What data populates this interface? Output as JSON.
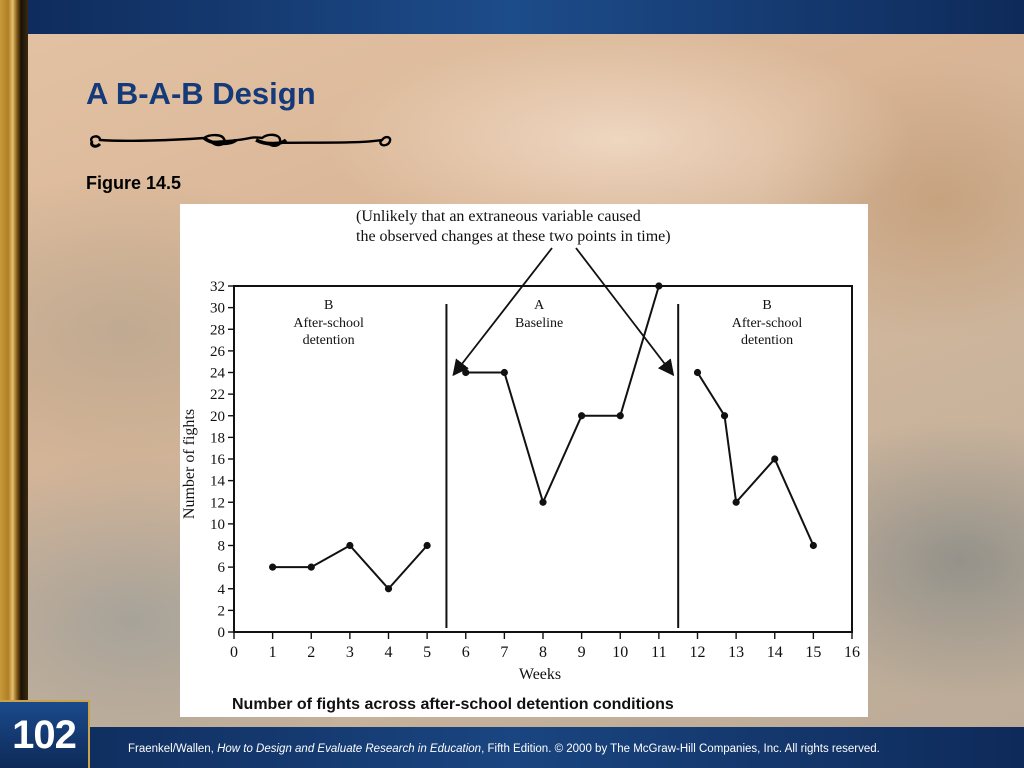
{
  "slide": {
    "title": "A B-A-B Design",
    "figure_label": "Figure 14.5",
    "page_number": "102",
    "footer": {
      "authors": "Fraenkel/Wallen, ",
      "book_title": "How to Design and Evaluate Research in Education",
      "rest": ", Fifth Edition. © 2000 by The McGraw-Hill Companies, Inc. All rights reserved."
    }
  },
  "colors": {
    "title": "#143a7a",
    "bar": "#0e2a5a",
    "accent_gold": "#c9a24a"
  },
  "icons": [
    "flourish-ornament"
  ],
  "chart_data": {
    "type": "line",
    "title": "Number of fights across after-school detention conditions",
    "xlabel": "Weeks",
    "ylabel": "Number of fights",
    "xlim": [
      0,
      16
    ],
    "ylim": [
      0,
      32
    ],
    "x_ticks": [
      0,
      1,
      2,
      3,
      4,
      5,
      6,
      7,
      8,
      9,
      10,
      11,
      12,
      13,
      14,
      15,
      16
    ],
    "y_ticks": [
      0,
      2,
      4,
      6,
      8,
      10,
      12,
      14,
      16,
      18,
      20,
      22,
      24,
      26,
      28,
      30,
      32
    ],
    "grid": false,
    "phase_dividers": [
      5.5,
      11.5
    ],
    "phases": [
      {
        "code": "B",
        "line1": "After-school",
        "line2": "detention",
        "center": 2.45
      },
      {
        "code": "A",
        "line1": "Baseline",
        "line2": "",
        "center": 7.9
      },
      {
        "code": "B",
        "line1": "After-school",
        "line2": "detention",
        "center": 13.8
      }
    ],
    "series": [
      {
        "phase": "B",
        "x": [
          1,
          2,
          3,
          4,
          5
        ],
        "y": [
          6,
          6,
          8,
          4,
          8
        ]
      },
      {
        "phase": "A",
        "x": [
          6,
          7,
          8,
          9,
          10,
          11
        ],
        "y": [
          24,
          24,
          12,
          20,
          20,
          32
        ]
      },
      {
        "phase": "B",
        "x": [
          12,
          12.7,
          13,
          14,
          15
        ],
        "y": [
          24,
          20,
          12,
          16,
          8
        ]
      }
    ],
    "annotation": {
      "line1": "(Unlikely that an extraneous variable caused",
      "line2": "the observed changes at these two points in time)",
      "arrow_targets": [
        {
          "x": 5.5,
          "y": 26
        },
        {
          "x": 11.5,
          "y": 26
        }
      ]
    }
  }
}
